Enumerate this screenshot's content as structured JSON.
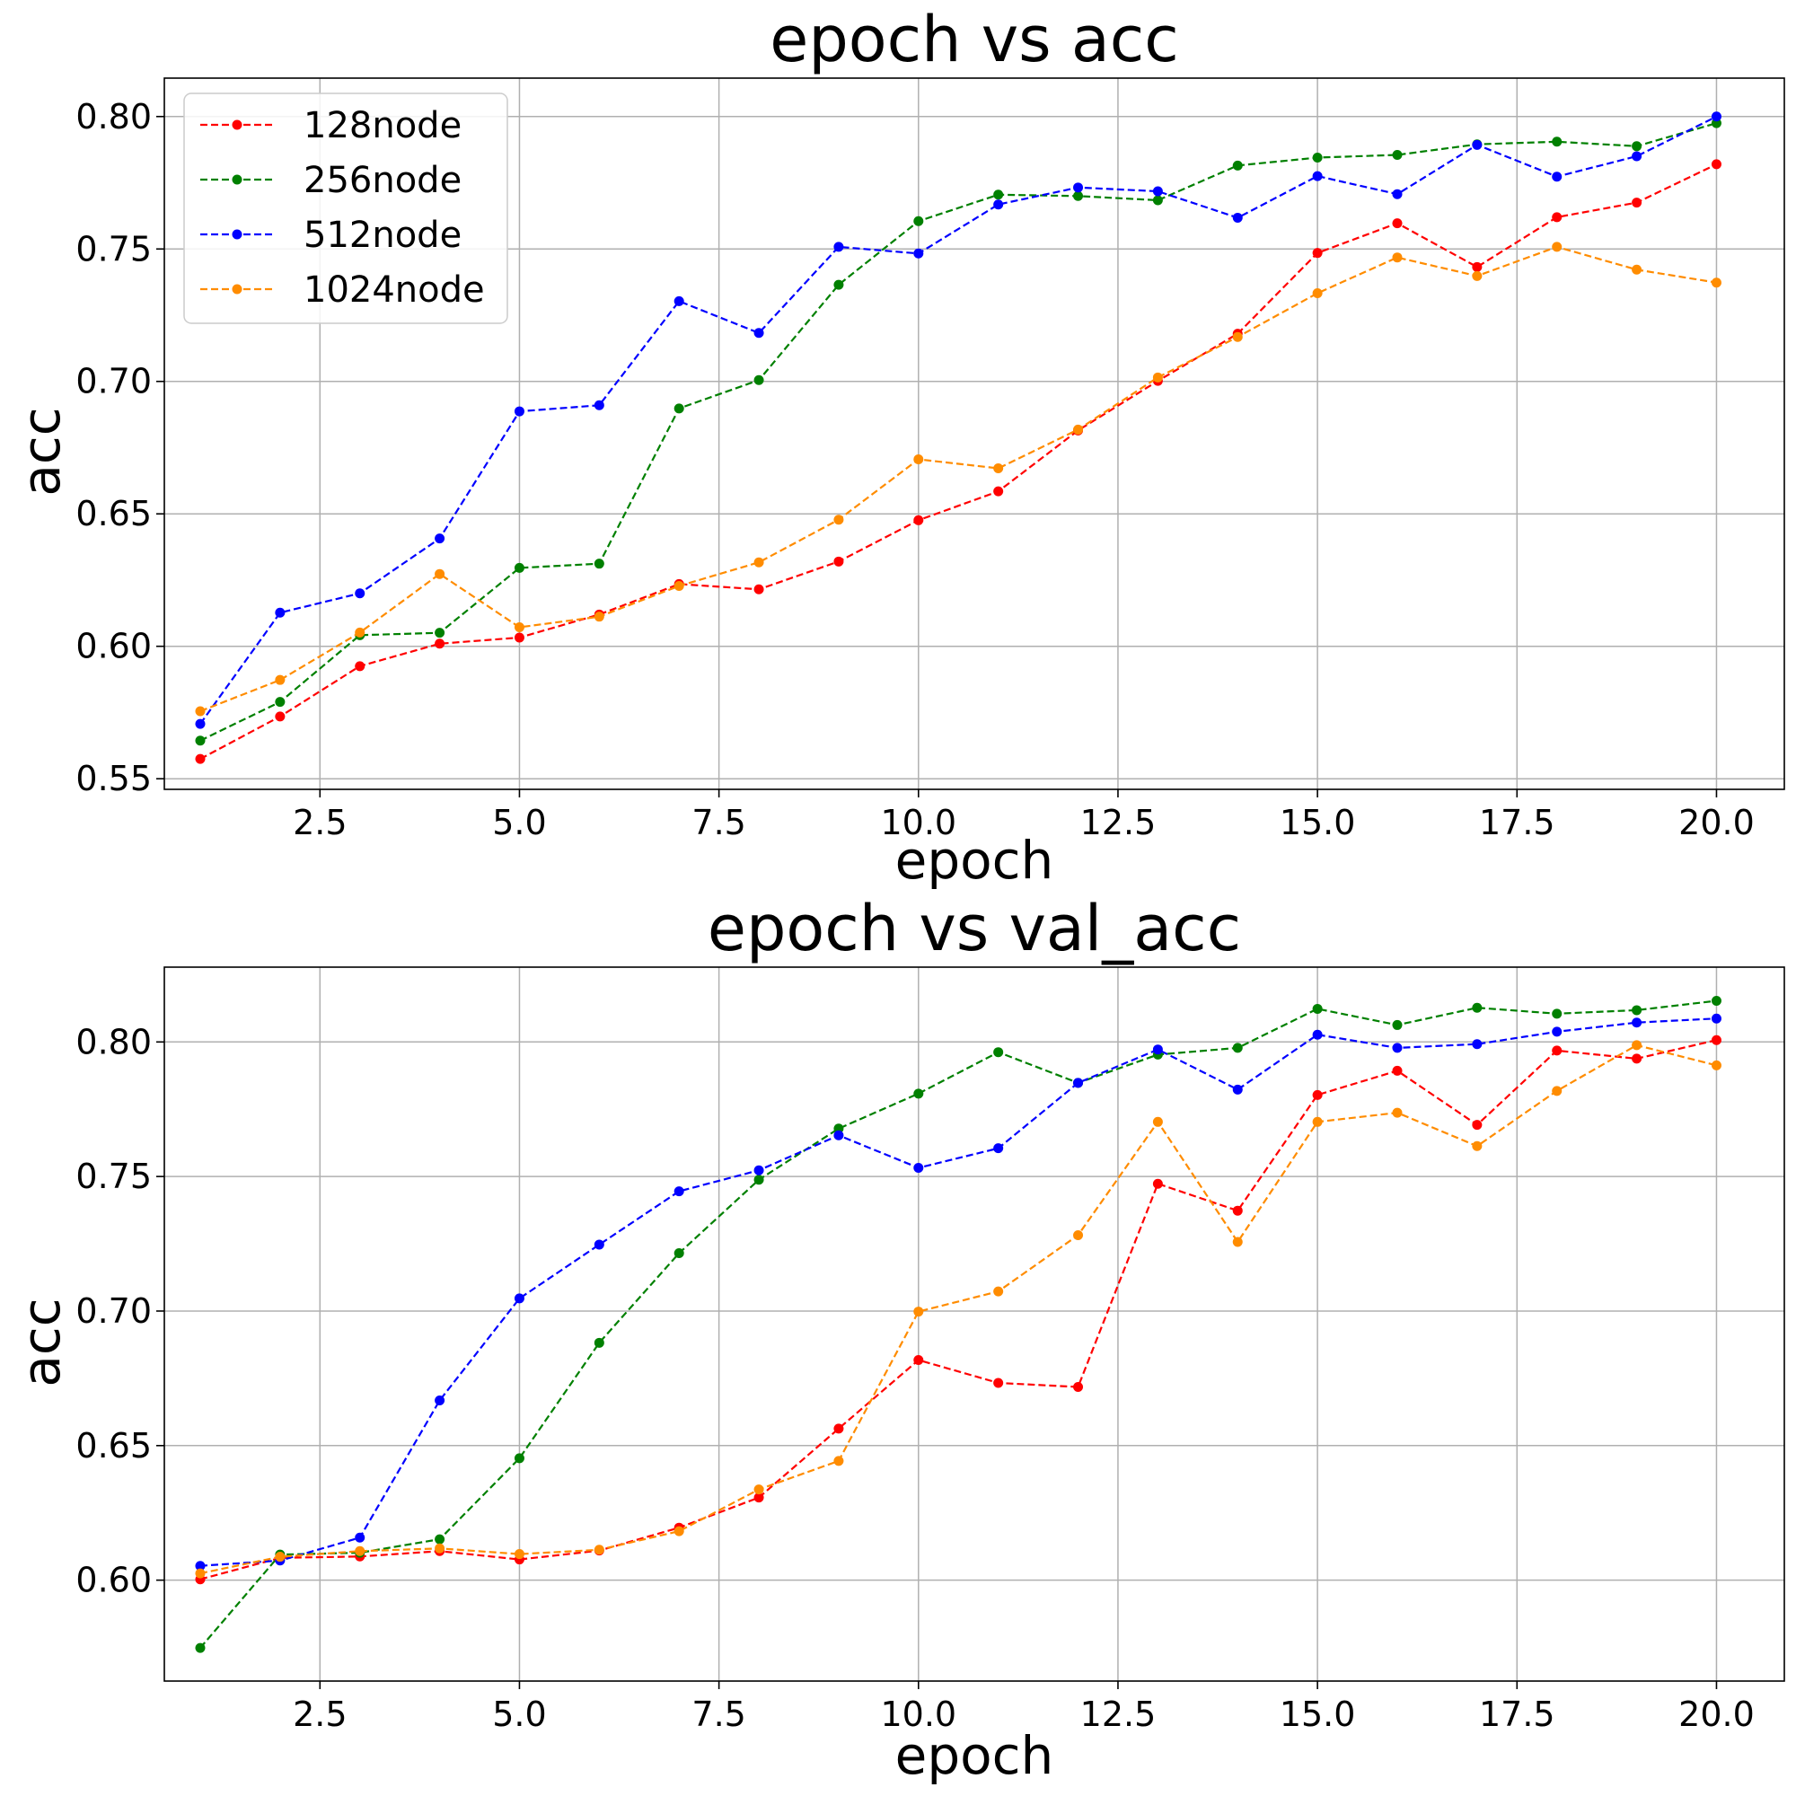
{
  "chart_data": [
    {
      "type": "line",
      "title": "epoch vs acc",
      "xlabel": "epoch",
      "ylabel": "acc",
      "xlim": [
        0.55,
        20.85
      ],
      "ylim": [
        0.546,
        0.8145
      ],
      "xticks": [
        2.5,
        5.0,
        7.5,
        10.0,
        12.5,
        15.0,
        17.5,
        20.0
      ],
      "xtick_labels": [
        "2.5",
        "5.0",
        "7.5",
        "10.0",
        "12.5",
        "15.0",
        "17.5",
        "20.0"
      ],
      "yticks": [
        0.55,
        0.6,
        0.65,
        0.7,
        0.75,
        0.8
      ],
      "ytick_labels": [
        "0.55",
        "0.60",
        "0.65",
        "0.70",
        "0.75",
        "0.80"
      ],
      "grid": true,
      "legend": "upper-left",
      "x": [
        1,
        2,
        3,
        4,
        5,
        6,
        7,
        8,
        9,
        10,
        11,
        12,
        13,
        14,
        15,
        16,
        17,
        18,
        19,
        20
      ],
      "series": [
        {
          "name": "128node",
          "color": "#ff0000",
          "values": [
            0.5575,
            0.5735,
            0.5925,
            0.601,
            0.6033,
            0.612,
            0.6235,
            0.6215,
            0.632,
            0.6476,
            0.6585,
            0.6815,
            0.7002,
            0.718,
            0.7485,
            0.7597,
            0.7432,
            0.762,
            0.7675,
            0.782
          ]
        },
        {
          "name": "256node",
          "color": "#008000",
          "values": [
            0.5644,
            0.579,
            0.6042,
            0.6051,
            0.6296,
            0.6312,
            0.6898,
            0.7005,
            0.7365,
            0.7605,
            0.7705,
            0.77,
            0.7684,
            0.7815,
            0.7845,
            0.7855,
            0.7895,
            0.7905,
            0.7888,
            0.7975
          ]
        },
        {
          "name": "512node",
          "color": "#0000ff",
          "values": [
            0.5707,
            0.6127,
            0.62,
            0.6407,
            0.6887,
            0.691,
            0.7303,
            0.7183,
            0.7508,
            0.7483,
            0.7668,
            0.7732,
            0.7718,
            0.7618,
            0.7775,
            0.7707,
            0.7893,
            0.7773,
            0.785,
            0.8
          ]
        },
        {
          "name": "1024node",
          "color": "#ff8c00",
          "values": [
            0.5755,
            0.5873,
            0.6052,
            0.6273,
            0.6072,
            0.6112,
            0.6228,
            0.6317,
            0.6478,
            0.6706,
            0.6672,
            0.6818,
            0.7015,
            0.7168,
            0.7333,
            0.7468,
            0.7398,
            0.7508,
            0.7422,
            0.7373
          ]
        }
      ]
    },
    {
      "type": "line",
      "title": "epoch vs val_acc",
      "xlabel": "epoch",
      "ylabel": "acc",
      "xlim": [
        0.55,
        20.85
      ],
      "ylim": [
        0.5625,
        0.8278
      ],
      "xticks": [
        2.5,
        5.0,
        7.5,
        10.0,
        12.5,
        15.0,
        17.5,
        20.0
      ],
      "xtick_labels": [
        "2.5",
        "5.0",
        "7.5",
        "10.0",
        "12.5",
        "15.0",
        "17.5",
        "20.0"
      ],
      "yticks": [
        0.6,
        0.65,
        0.7,
        0.75,
        0.8
      ],
      "ytick_labels": [
        "0.60",
        "0.65",
        "0.70",
        "0.75",
        "0.80"
      ],
      "grid": true,
      "legend": "none",
      "x": [
        1,
        2,
        3,
        4,
        5,
        6,
        7,
        8,
        9,
        10,
        11,
        12,
        13,
        14,
        15,
        16,
        17,
        18,
        19,
        20
      ],
      "series": [
        {
          "name": "128node",
          "color": "#ff0000",
          "values": [
            0.6003,
            0.6083,
            0.6088,
            0.6108,
            0.6077,
            0.611,
            0.6195,
            0.6307,
            0.6563,
            0.6818,
            0.6733,
            0.6718,
            0.7473,
            0.7373,
            0.7803,
            0.7893,
            0.7692,
            0.7968,
            0.7938,
            0.8007
          ]
        },
        {
          "name": "256node",
          "color": "#008000",
          "values": [
            0.5748,
            0.6095,
            0.6102,
            0.6152,
            0.6453,
            0.6882,
            0.7215,
            0.7488,
            0.7678,
            0.7808,
            0.7962,
            0.7848,
            0.7953,
            0.7978,
            0.8123,
            0.8063,
            0.8127,
            0.8105,
            0.8118,
            0.8153
          ]
        },
        {
          "name": "512node",
          "color": "#0000ff",
          "values": [
            0.6053,
            0.6073,
            0.6158,
            0.6668,
            0.7047,
            0.7247,
            0.7445,
            0.7523,
            0.7653,
            0.7532,
            0.7605,
            0.7848,
            0.7972,
            0.7823,
            0.8027,
            0.7978,
            0.7992,
            0.8038,
            0.8072,
            0.8087
          ]
        },
        {
          "name": "1024node",
          "color": "#ff8c00",
          "values": [
            0.6025,
            0.6087,
            0.6108,
            0.6118,
            0.6097,
            0.6113,
            0.6182,
            0.6337,
            0.6443,
            0.6998,
            0.7073,
            0.7282,
            0.7703,
            0.7257,
            0.7703,
            0.7737,
            0.7613,
            0.7818,
            0.7988,
            0.7913
          ]
        }
      ]
    }
  ]
}
